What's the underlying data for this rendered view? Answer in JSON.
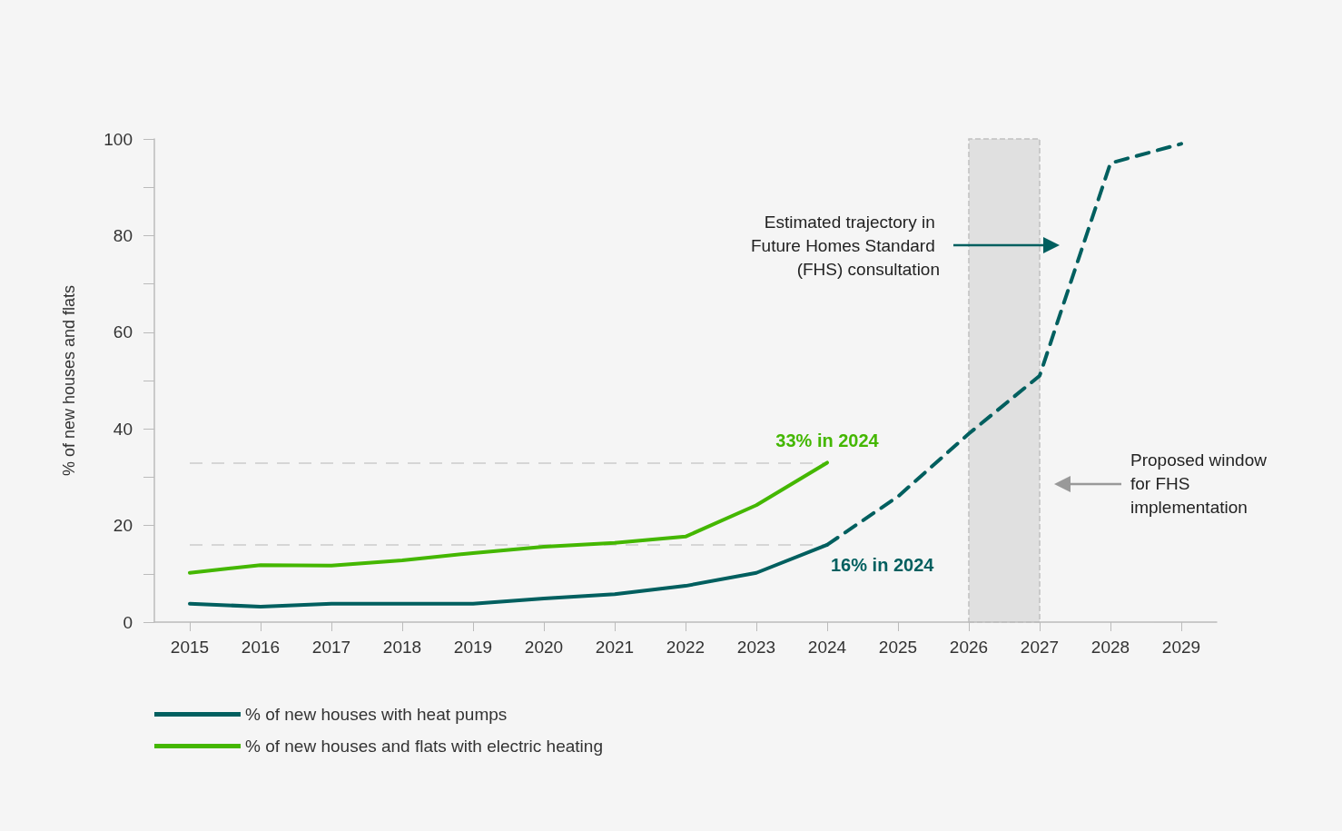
{
  "chart_data": {
    "type": "line",
    "ylabel": "% of new houses and flats",
    "categories": [
      "2015",
      "2016",
      "2017",
      "2018",
      "2019",
      "2020",
      "2021",
      "2022",
      "2023",
      "2024",
      "2025",
      "2026",
      "2027",
      "2028",
      "2029"
    ],
    "series": [
      {
        "name": "% of new houses with heat pumps",
        "color": "#005f5f",
        "values": [
          3.8,
          3.2,
          3.8,
          3.8,
          3.8,
          4.9,
          5.8,
          7.5,
          10.2,
          16,
          null,
          null,
          null,
          null,
          null
        ]
      },
      {
        "name": "% of new houses and flats with electric heating",
        "color": "#44b700",
        "values": [
          10.2,
          11.8,
          11.7,
          12.8,
          14.3,
          15.6,
          16.4,
          17.7,
          24.2,
          33,
          null,
          null,
          null,
          null,
          null
        ]
      },
      {
        "color": "#005f5f",
        "line_style": "dashed",
        "values": [
          null,
          null,
          null,
          null,
          null,
          null,
          null,
          null,
          null,
          16,
          26,
          39,
          51,
          95,
          99
        ]
      }
    ],
    "ylim": [
      0,
      100
    ],
    "yticks": [
      0,
      {
        "value": 10,
        "label": null
      },
      20,
      {
        "value": 30,
        "label": null
      },
      40,
      {
        "value": 50,
        "label": null
      },
      60,
      {
        "value": 70,
        "label": null
      },
      80,
      {
        "value": 90,
        "label": null
      },
      100
    ],
    "grid": false,
    "legend": "bottom left",
    "marker": "none",
    "line_style": "solid",
    "ref_lines": [
      {
        "axis": "y",
        "value": 33,
        "color": "#cccccc",
        "line_style": "dashed"
      },
      {
        "axis": "y",
        "value": 16,
        "color": "#cccccc",
        "line_style": "dashed"
      }
    ],
    "bands": [
      {
        "axis": "x",
        "from": "2026",
        "to": "2027",
        "color": "#e0e0e0"
      }
    ],
    "annotations": [
      {
        "text": "33% in 2024",
        "x": "2024",
        "y": 33
      },
      {
        "text": "16% in 2024",
        "x": "2024",
        "y": 16
      },
      {
        "text": "Estimated trajectory in Future Homes Standard (FHS) consultation",
        "x": "2027",
        "y": 78
      },
      "Proposed window for FHS implementation"
    ]
  }
}
